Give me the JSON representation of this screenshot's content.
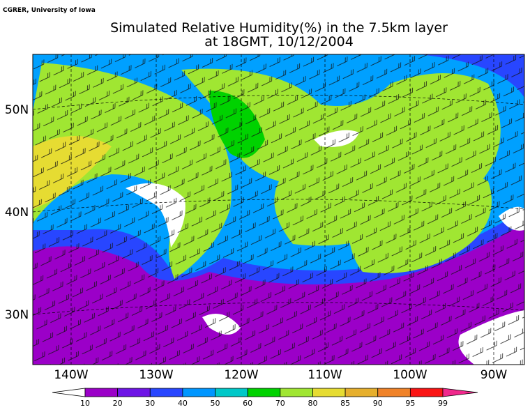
{
  "credit": "CGRER, University of Iowa",
  "title": [
    "Simulated Relative Humidity(%) in the 7.5km layer",
    "at 18GMT, 10/12/2004"
  ],
  "lon_labels": [
    "140W",
    "130W",
    "120W",
    "110W",
    "100W",
    "90W"
  ],
  "lat_labels": [
    "50N",
    "40N",
    "30N"
  ],
  "colorbar": {
    "labels": [
      "10",
      "20",
      "30",
      "40",
      "50",
      "60",
      "70",
      "80",
      "85",
      "90",
      "95",
      "99"
    ],
    "colors": [
      "#9b00c8",
      "#6e14e6",
      "#2846ff",
      "#0096ff",
      "#00c8c8",
      "#00d200",
      "#a0e632",
      "#e6dc32",
      "#e6af2d",
      "#f08228",
      "#fa1414"
    ],
    "below_color": "#ffffff",
    "above_color": "#f0288c"
  }
}
